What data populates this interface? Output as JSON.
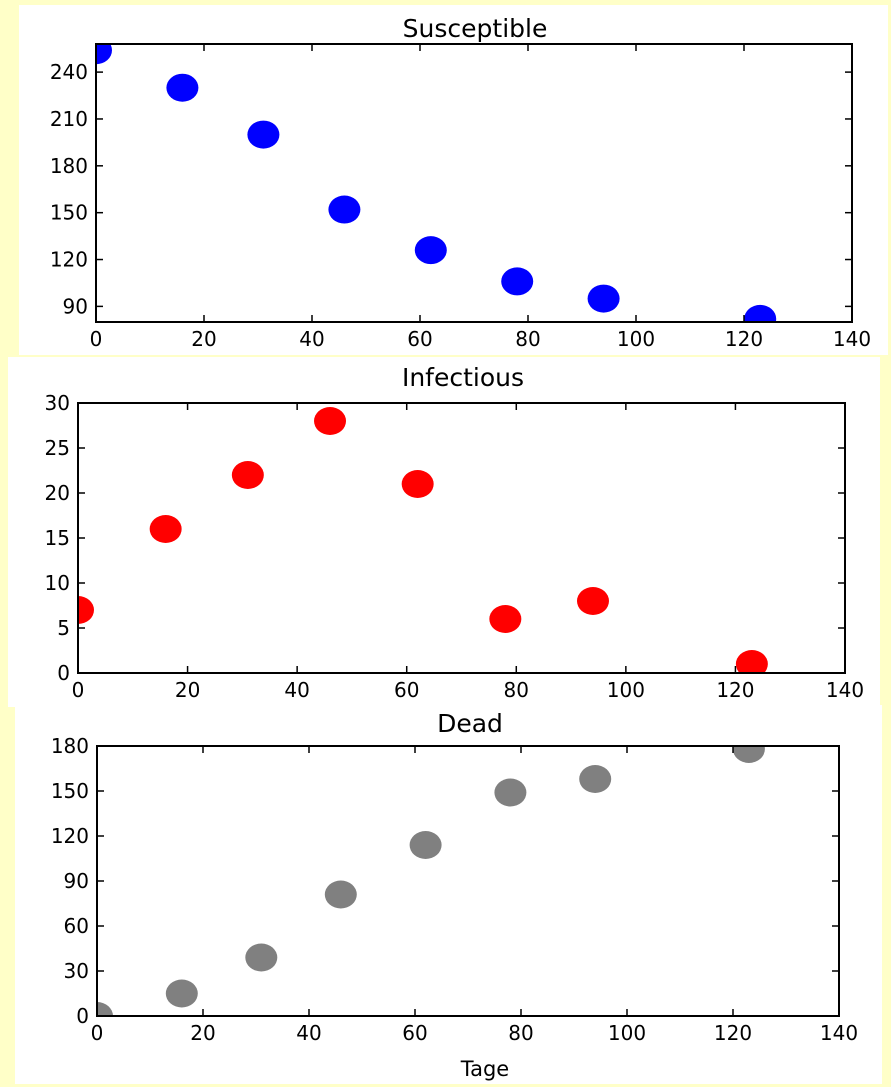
{
  "chart_data": [
    {
      "type": "scatter",
      "title": "Susceptible",
      "xlabel": "",
      "ylabel": "",
      "x": [
        0,
        16,
        31,
        46,
        62,
        78,
        94,
        123
      ],
      "y": [
        254,
        230,
        200,
        152,
        126,
        106,
        95,
        82
      ],
      "xlim": [
        0,
        140
      ],
      "ylim": [
        80,
        258
      ],
      "xticks": [
        0,
        20,
        40,
        60,
        80,
        100,
        120,
        140
      ],
      "yticks": [
        90,
        120,
        150,
        180,
        210,
        240
      ],
      "color": "#0000ff",
      "grid": false
    },
    {
      "type": "scatter",
      "title": "Infectious",
      "xlabel": "",
      "ylabel": "",
      "x": [
        0,
        16,
        31,
        46,
        62,
        78,
        94,
        123
      ],
      "y": [
        7,
        16,
        22,
        28,
        21,
        6,
        8,
        1
      ],
      "xlim": [
        0,
        140
      ],
      "ylim": [
        0,
        30
      ],
      "xticks": [
        0,
        20,
        40,
        60,
        80,
        100,
        120,
        140
      ],
      "yticks": [
        0,
        5,
        10,
        15,
        20,
        25,
        30
      ],
      "color": "#ff0000",
      "grid": false
    },
    {
      "type": "scatter",
      "title": "Dead",
      "xlabel": "Tage",
      "ylabel": "",
      "x": [
        0,
        16,
        31,
        46,
        62,
        78,
        94,
        123
      ],
      "y": [
        0,
        15,
        39,
        81,
        114,
        149,
        158,
        178
      ],
      "xlim": [
        0,
        140
      ],
      "ylim": [
        0,
        180
      ],
      "xticks": [
        0,
        20,
        40,
        60,
        80,
        100,
        120,
        140
      ],
      "yticks": [
        0,
        30,
        60,
        90,
        120,
        150,
        180
      ],
      "color": "#808080",
      "grid": false
    }
  ]
}
